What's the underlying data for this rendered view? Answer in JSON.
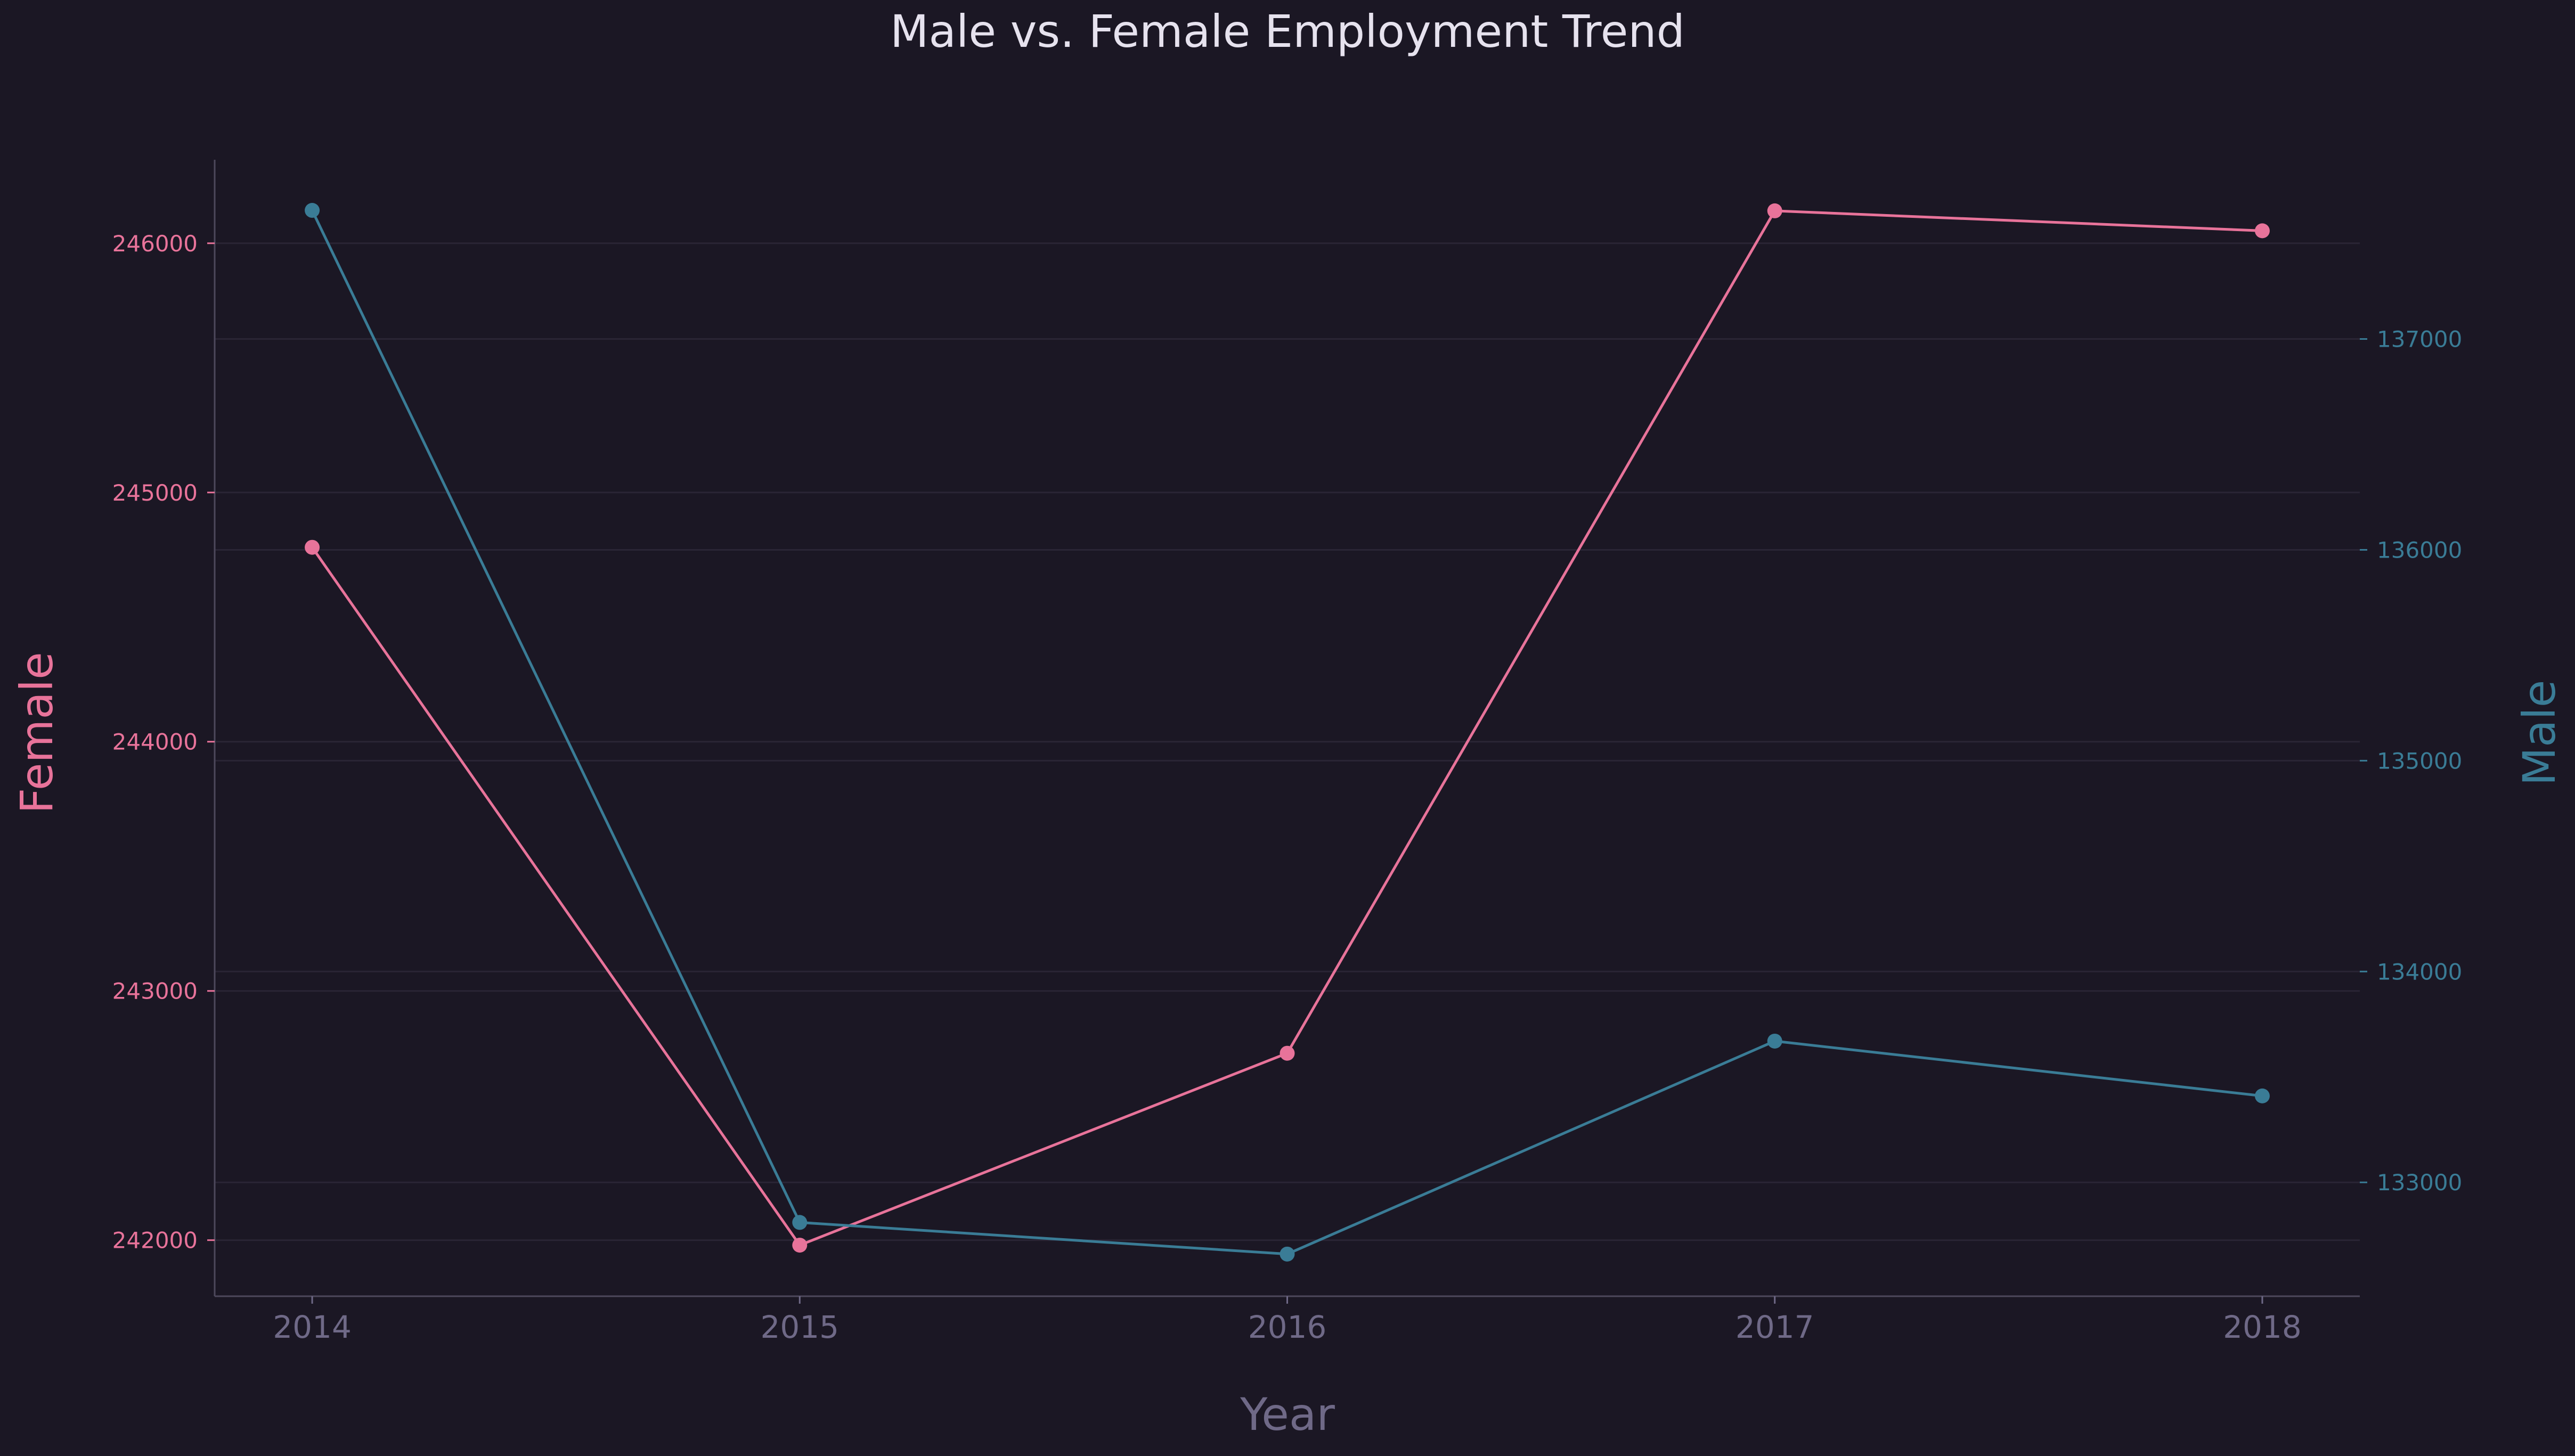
{
  "chart_data": {
    "type": "line",
    "title": "Male vs. Female Employment Trend",
    "xlabel": "Year",
    "x": [
      2014,
      2015,
      2016,
      2017,
      2018
    ],
    "x_tick_labels": [
      "2014",
      "2015",
      "2016",
      "2017",
      "2018"
    ],
    "xlim": [
      2013.8,
      2018.2
    ],
    "grid": true,
    "legend": "none",
    "y_axes": {
      "left": {
        "label": "Female",
        "color": "#e8739a",
        "ylim": [
          241775,
          246335
        ],
        "ticks": [
          242000,
          243000,
          244000,
          245000,
          246000
        ],
        "tick_labels": [
          "242000",
          "243000",
          "244000",
          "245000",
          "246000"
        ]
      },
      "right": {
        "label": "Male",
        "color": "#3a7c96",
        "ylim": [
          132460,
          137850
        ],
        "ticks": [
          133000,
          134000,
          135000,
          136000,
          137000
        ],
        "tick_labels": [
          "133000",
          "134000",
          "135000",
          "136000",
          "137000"
        ]
      }
    },
    "series": [
      {
        "name": "Female",
        "axis": "left",
        "color": "#e8739a",
        "values": [
          244780,
          241980,
          242750,
          246130,
          246050
        ]
      },
      {
        "name": "Male",
        "axis": "right",
        "color": "#3a7c96",
        "values": [
          137610,
          132810,
          132660,
          133670,
          133410
        ]
      }
    ]
  },
  "colors": {
    "background": "#1b1724",
    "title": "#e6e2ee",
    "axis_text": "#6f6987",
    "spine": "#4d485c",
    "grid": "#2a2535"
  }
}
